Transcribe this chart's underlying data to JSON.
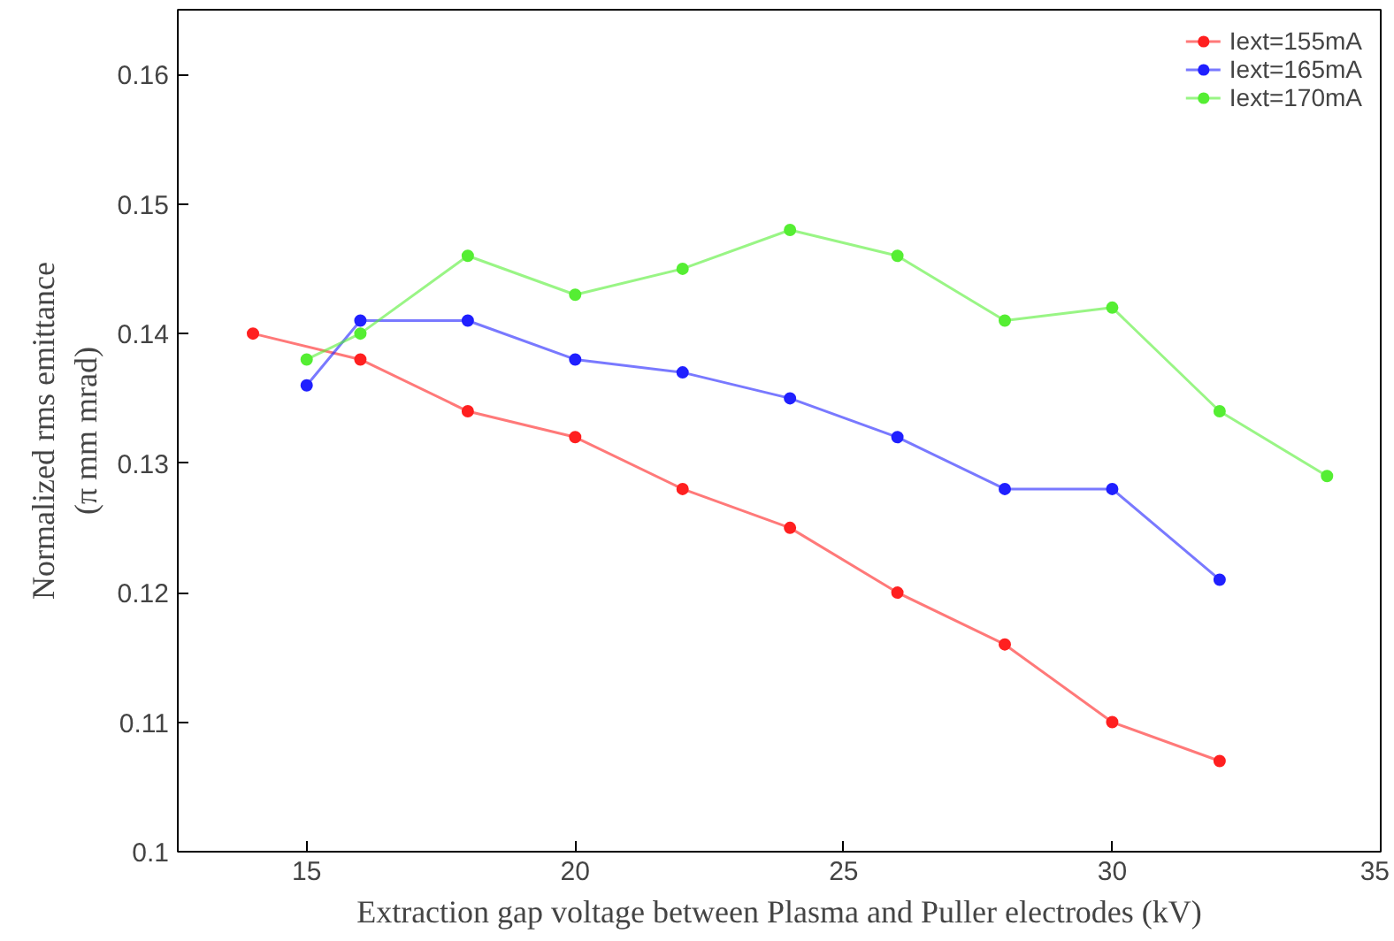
{
  "chart_data": {
    "type": "line",
    "xlabel": "Extraction gap voltage between Plasma and Puller electrodes (kV)",
    "ylabel": "Normalized rms emittance\n(π mm mrad)",
    "xlim": [
      12.6,
      35
    ],
    "xticks": [
      15,
      20,
      25,
      30,
      35
    ],
    "ylim": [
      0.1,
      0.165
    ],
    "yticks": [
      0.1,
      0.11,
      0.12,
      0.13,
      0.14,
      0.15,
      0.16
    ],
    "grid": false,
    "legend": "top right",
    "marker": "circle",
    "line_style": "solid",
    "series": [
      {
        "name": "Iext=155mA",
        "color": "#ff2020",
        "x": [
          14,
          16,
          18,
          20,
          22,
          24,
          26,
          28,
          30,
          32
        ],
        "values": [
          0.14,
          0.138,
          0.134,
          0.132,
          0.128,
          0.125,
          0.12,
          0.116,
          0.11,
          0.107
        ]
      },
      {
        "name": "Iext=165mA",
        "color": "#2020ff",
        "x": [
          15,
          16,
          18,
          20,
          22,
          24,
          26,
          28,
          30,
          32
        ],
        "values": [
          0.136,
          0.141,
          0.141,
          0.138,
          0.137,
          0.135,
          0.132,
          0.128,
          0.128,
          0.121
        ]
      },
      {
        "name": "Iext=170mA",
        "color": "#55ee33",
        "x": [
          15,
          16,
          18,
          20,
          22,
          24,
          26,
          28,
          30,
          32,
          34
        ],
        "values": [
          0.138,
          0.14,
          0.146,
          0.143,
          0.145,
          0.148,
          0.146,
          0.141,
          0.142,
          0.134,
          0.129
        ]
      }
    ]
  }
}
